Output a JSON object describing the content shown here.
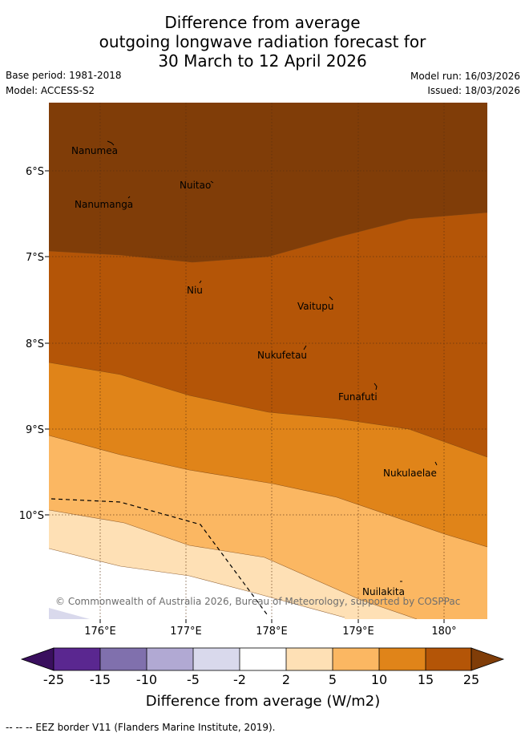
{
  "title": {
    "line1": "Difference from average",
    "line2": "outgoing longwave radiation forecast for",
    "line3": "30 March to 12 April 2026"
  },
  "meta": {
    "base_period": "Base period: 1981-2018",
    "model": "Model: ACCESS-S2",
    "model_run": "Model run: 16/03/2026",
    "issued": "Issued: 18/03/2026"
  },
  "map": {
    "lat_labels": [
      "6°S",
      "7°S",
      "8°S",
      "9°S",
      "10°S"
    ],
    "lon_labels": [
      "176°E",
      "177°E",
      "178°E",
      "179°E",
      "180°"
    ],
    "places": [
      "Nanumea",
      "Nuitao",
      "Nanumanga",
      "Niu",
      "Vaitupu",
      "Nukufetau",
      "Funafuti",
      "Nukulaelae",
      "Nuilakita"
    ],
    "copyright": "© Commonwealth of Australia 2026, Bureau of Meteorology, supported by COSPPac"
  },
  "colorbar": {
    "ticks": [
      "-25",
      "-15",
      "-10",
      "-5",
      "-2",
      "2",
      "5",
      "10",
      "15",
      "25"
    ],
    "colors": {
      "under": "#3a0f5e",
      "b1": "#5a2790",
      "b2": "#8070ad",
      "b3": "#b1a9d3",
      "b4": "#d9d9ec",
      "b5": "#ffffff",
      "b6": "#fee0b5",
      "b7": "#fbb762",
      "b8": "#e08419",
      "b9": "#b45507",
      "over": "#803d08"
    },
    "label": "Difference from average (W/m2)"
  },
  "footer": "-- -- -- EEZ border V11 (Flanders Marine Institute, 2019)."
}
